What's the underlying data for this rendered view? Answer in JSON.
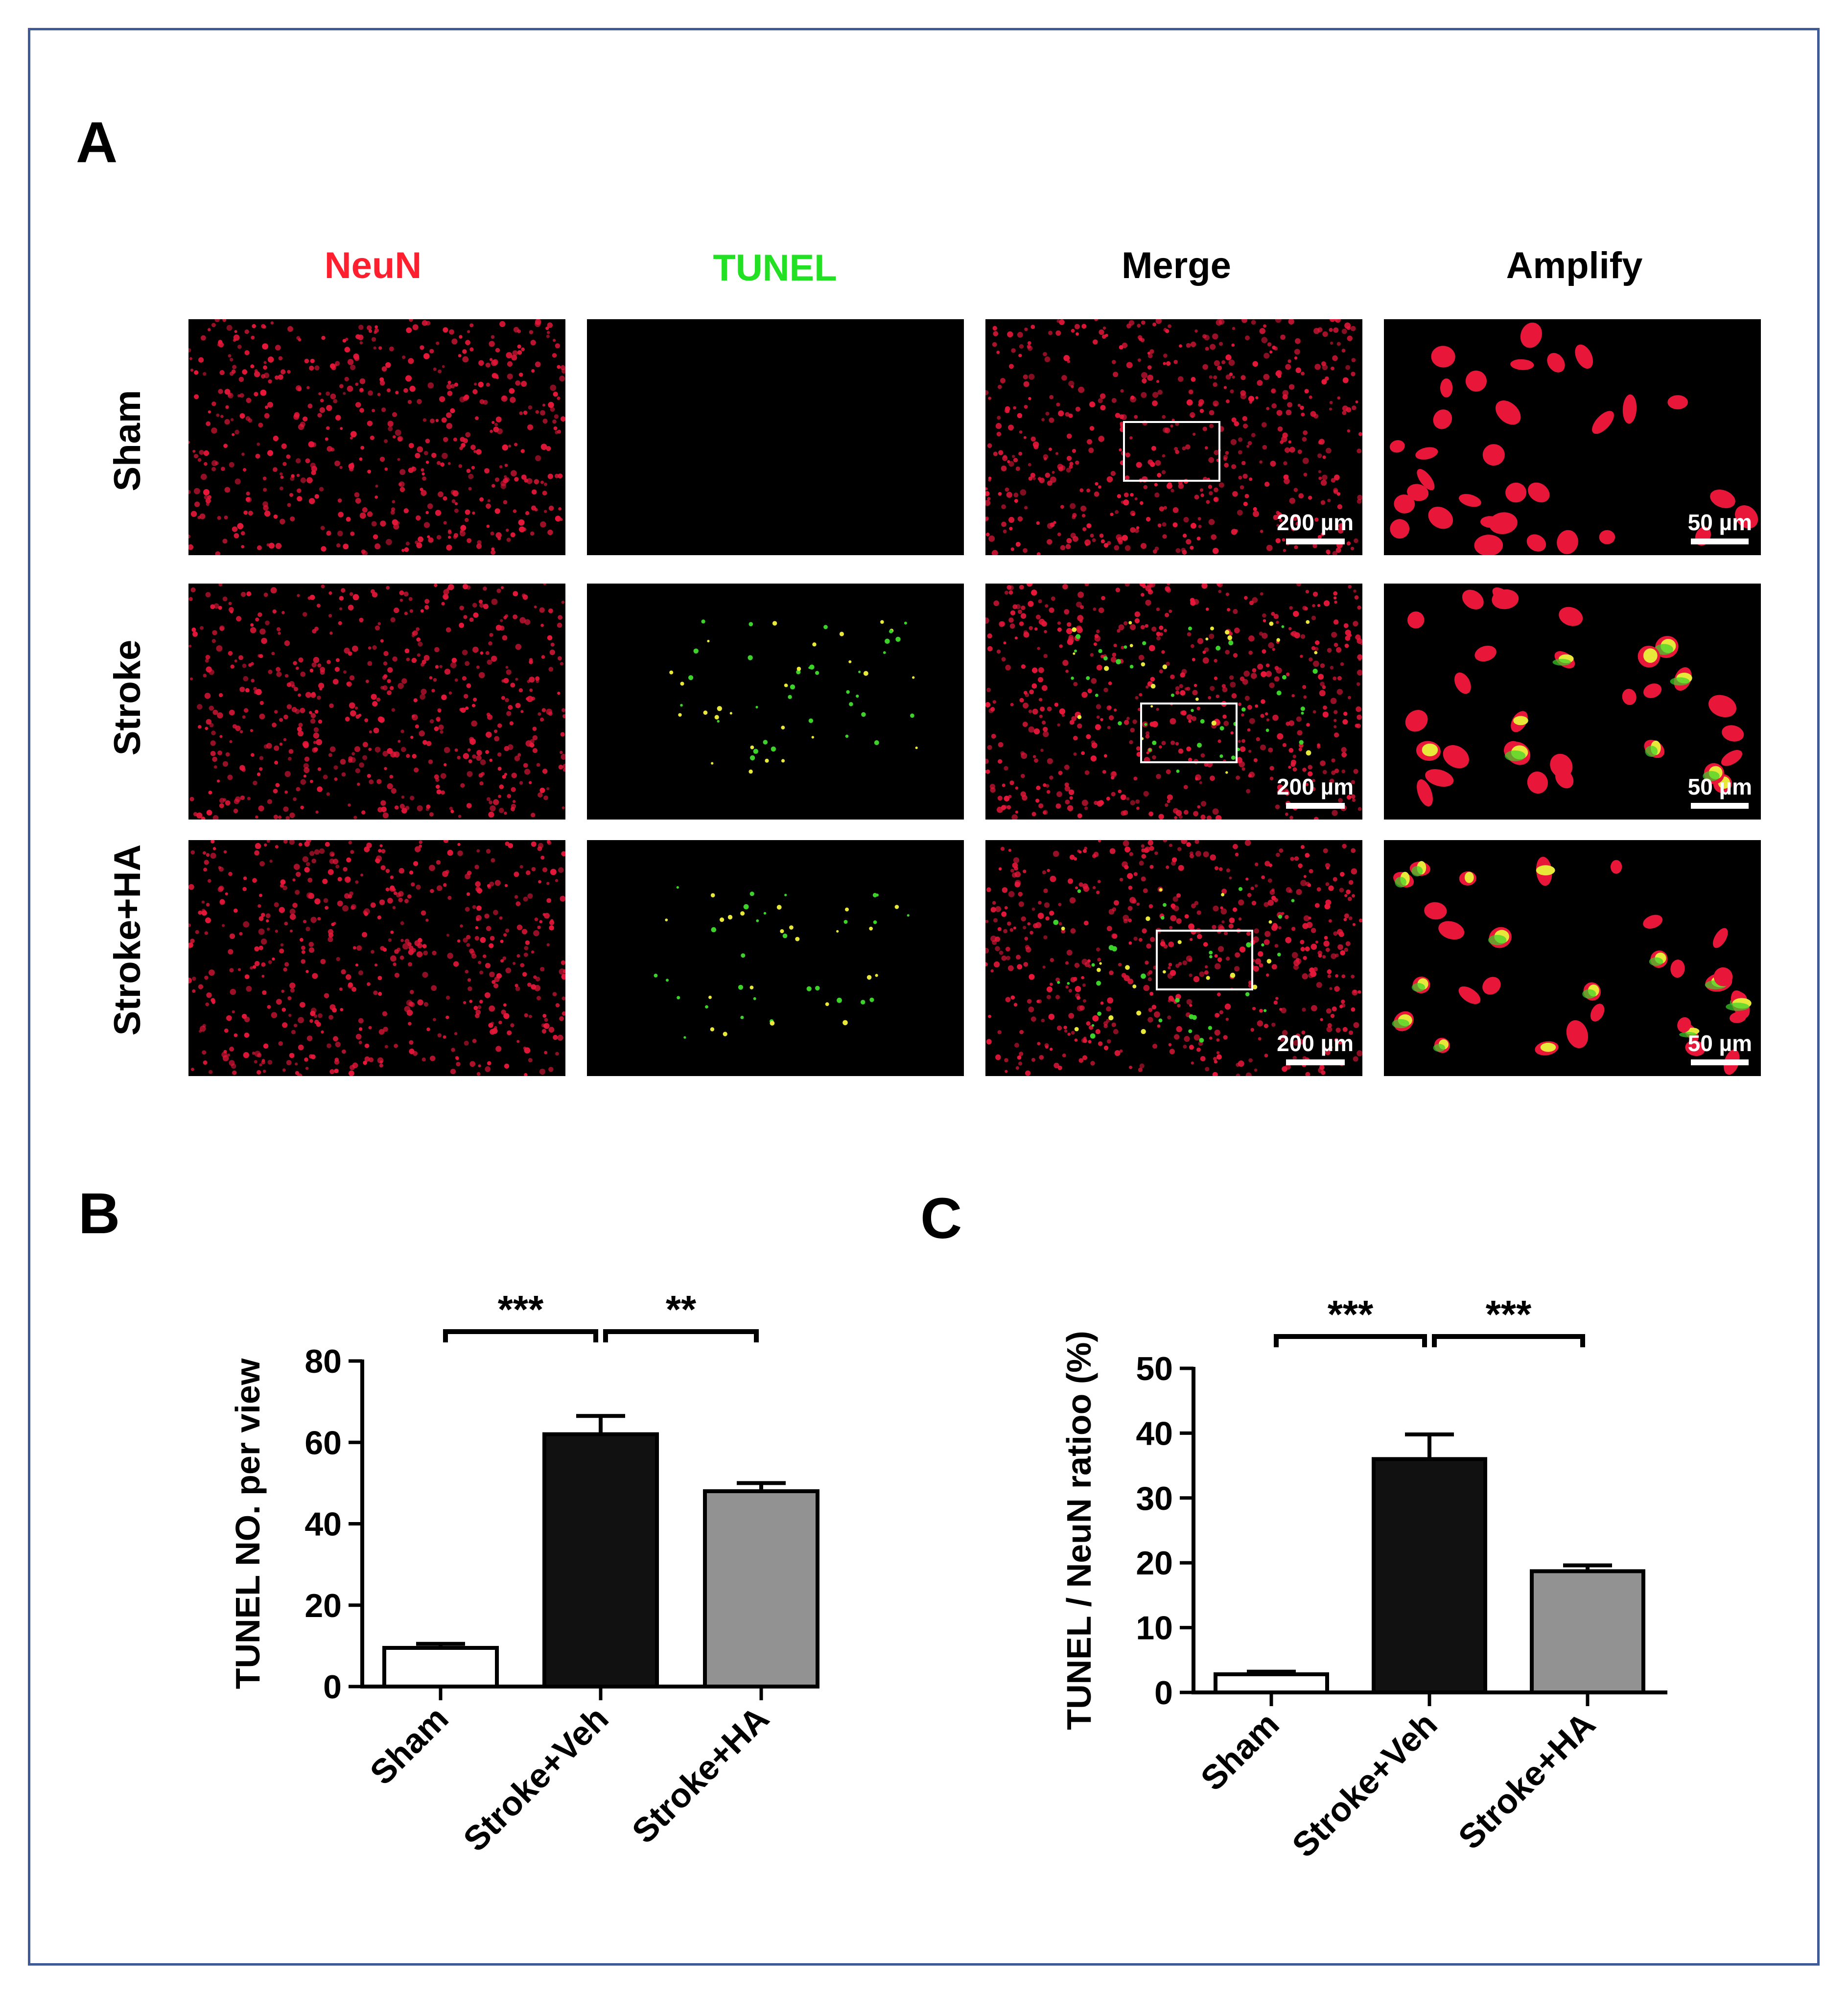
{
  "panels": {
    "a": {
      "letter": "A"
    },
    "b": {
      "letter": "B"
    },
    "c": {
      "letter": "C"
    }
  },
  "columns": [
    {
      "label": "NeuN",
      "color": "#ff1f2e"
    },
    {
      "label": "TUNEL",
      "color": "#22e022"
    },
    {
      "label": "Merge",
      "color": "#000000"
    },
    {
      "label": "Amplify",
      "color": "#000000"
    }
  ],
  "rows": [
    {
      "label": "Sham"
    },
    {
      "label": "Stroke"
    },
    {
      "label": "Stroke+HA"
    }
  ],
  "scale_bars": {
    "merge": "200 µm",
    "amplify": "50 µm"
  },
  "colors": {
    "neun": "#e8173a",
    "tunel": "#3cd22a",
    "merged": "#e8e83a",
    "frame": "#3f5a96"
  },
  "chart_data": [
    {
      "type": "bar",
      "panel": "B",
      "categories": [
        "Sham",
        "Stroke+Veh",
        "Stroke+HA"
      ],
      "values": [
        9.5,
        62,
        48
      ],
      "errors": [
        1.0,
        4.5,
        2.0
      ],
      "bar_colors": [
        "#ffffff",
        "#111111",
        "#929292"
      ],
      "ylabel": "TUNEL NO.  per view",
      "xlabel": "",
      "ylim": [
        0,
        80
      ],
      "yticks": [
        0,
        20,
        40,
        60,
        80
      ],
      "significance": [
        {
          "from": 0,
          "to": 1,
          "label": "***"
        },
        {
          "from": 1,
          "to": 2,
          "label": "**"
        }
      ]
    },
    {
      "type": "bar",
      "panel": "C",
      "categories": [
        "Sham",
        "Stroke+Veh",
        "Stroke+HA"
      ],
      "values": [
        2.8,
        36,
        18.7
      ],
      "errors": [
        0.4,
        3.8,
        0.9
      ],
      "bar_colors": [
        "#ffffff",
        "#111111",
        "#929292"
      ],
      "ylabel": "TUNEL / NeuN ratioo (%)",
      "xlabel": "",
      "ylim": [
        0,
        50
      ],
      "yticks": [
        0,
        10,
        20,
        30,
        40,
        50
      ],
      "significance": [
        {
          "from": 0,
          "to": 1,
          "label": "***"
        },
        {
          "from": 1,
          "to": 2,
          "label": "***"
        }
      ]
    }
  ]
}
